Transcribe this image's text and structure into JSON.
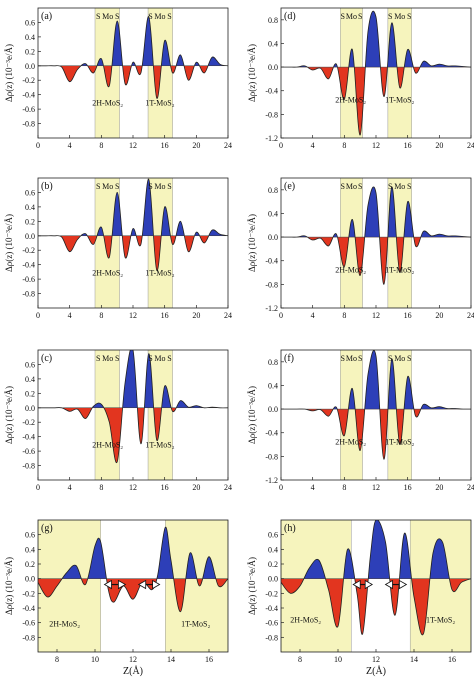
{
  "chart_data": [
    {
      "label": "(a)",
      "type": "area",
      "xlabel": "",
      "ylabel": "Δρ(z) (10⁻³e/Å)",
      "xlim": [
        0,
        24
      ],
      "ylim": [
        -1.0,
        0.8
      ],
      "xticks": [
        "0",
        "4",
        "8",
        "12",
        "16",
        "20",
        "24"
      ],
      "yticks": [
        "-0.8",
        "-0.6",
        "-0.4",
        "-0.2",
        "0.0",
        "0.2",
        "0.4",
        "0.6"
      ],
      "bands": [
        [
          7.2,
          10.3
        ],
        [
          13.9,
          17.0
        ]
      ],
      "atom_labels": [
        {
          "text": "S",
          "x": 7.6
        },
        {
          "text": "Mo",
          "x": 8.8
        },
        {
          "text": "S",
          "x": 10.0
        },
        {
          "text": "S",
          "x": 14.2
        },
        {
          "text": "Mo",
          "x": 15.4
        },
        {
          "text": "S",
          "x": 16.6
        }
      ],
      "region_labels": [
        {
          "text": "2H-MoS₂",
          "x": 8.8,
          "y": -0.55
        },
        {
          "text": "1T-MoS₂",
          "x": 15.4,
          "y": -0.55
        }
      ],
      "x": [
        0,
        1,
        2,
        3,
        4,
        5,
        6,
        7,
        8,
        9,
        10,
        11,
        12,
        13,
        14,
        15,
        16,
        17,
        18,
        19,
        20,
        21,
        22,
        23,
        24
      ],
      "values": [
        0,
        0,
        0,
        -0.02,
        -0.22,
        -0.05,
        0.03,
        -0.1,
        0.1,
        -0.28,
        0.62,
        -0.25,
        0.05,
        -0.1,
        0.68,
        -0.45,
        0.35,
        -0.1,
        0.15,
        -0.2,
        0.05,
        -0.1,
        0.12,
        0.02,
        0
      ]
    },
    {
      "label": "(d)",
      "type": "area",
      "xlabel": "",
      "ylabel": "Δρ(z) (10⁻³e/Å)",
      "xlim": [
        0,
        24
      ],
      "ylim": [
        -1.2,
        1.0
      ],
      "xticks": [
        "0",
        "4",
        "8",
        "12",
        "16",
        "20",
        "24"
      ],
      "yticks": [
        "-1.2",
        "-0.8",
        "-0.4",
        "0.0",
        "0.4",
        "0.8"
      ],
      "bands": [
        [
          7.5,
          10.3
        ],
        [
          13.5,
          16.5
        ]
      ],
      "atom_labels": [
        {
          "text": "S",
          "x": 7.8
        },
        {
          "text": "Mo",
          "x": 8.9
        },
        {
          "text": "S",
          "x": 10.0
        },
        {
          "text": "S",
          "x": 13.8
        },
        {
          "text": "Mo",
          "x": 15.0
        },
        {
          "text": "S",
          "x": 16.2
        }
      ],
      "region_labels": [
        {
          "text": "2H-MoS₂",
          "x": 8.8,
          "y": -0.6
        },
        {
          "text": "1T-MoS₂",
          "x": 15.0,
          "y": -0.6
        }
      ],
      "x": [
        0,
        1,
        2,
        3,
        4,
        5,
        6,
        7,
        8,
        9,
        10,
        11,
        12,
        13,
        14,
        15,
        16,
        17,
        18,
        19,
        20,
        21,
        22,
        23,
        24
      ],
      "values": [
        0,
        0,
        0,
        0.02,
        -0.05,
        -0.02,
        -0.2,
        0.05,
        -0.55,
        0.3,
        -1.15,
        0.62,
        0.85,
        -0.5,
        0.75,
        -0.35,
        0.3,
        -0.1,
        0.1,
        0.02,
        0.05,
        0.02,
        0.02,
        0.01,
        0
      ]
    },
    {
      "label": "(b)",
      "type": "area",
      "xlabel": "",
      "ylabel": "Δρ(z) (10⁻³e/Å)",
      "xlim": [
        0,
        24
      ],
      "ylim": [
        -1.0,
        0.8
      ],
      "xticks": [
        "0",
        "4",
        "8",
        "12",
        "16",
        "20",
        "24"
      ],
      "yticks": [
        "-0.8",
        "-0.6",
        "-0.4",
        "-0.2",
        "0.0",
        "0.2",
        "0.4",
        "0.6"
      ],
      "bands": [
        [
          7.2,
          10.3
        ],
        [
          13.9,
          17.0
        ]
      ],
      "atom_labels": [
        {
          "text": "S",
          "x": 7.6
        },
        {
          "text": "Mo",
          "x": 8.8
        },
        {
          "text": "S",
          "x": 10.0
        },
        {
          "text": "S",
          "x": 14.2
        },
        {
          "text": "Mo",
          "x": 15.4
        },
        {
          "text": "S",
          "x": 16.6
        }
      ],
      "region_labels": [
        {
          "text": "2H-MoS₂",
          "x": 8.8,
          "y": -0.55
        },
        {
          "text": "1T-MoS₂",
          "x": 15.4,
          "y": -0.55
        }
      ],
      "x": [
        0,
        1,
        2,
        3,
        4,
        5,
        6,
        7,
        8,
        9,
        10,
        11,
        12,
        13,
        14,
        15,
        16,
        17,
        18,
        19,
        20,
        21,
        22,
        23,
        24
      ],
      "values": [
        0,
        0,
        0,
        -0.02,
        -0.22,
        -0.05,
        0.03,
        -0.12,
        0.12,
        -0.3,
        0.6,
        -0.3,
        0.1,
        -0.12,
        0.78,
        -0.48,
        0.4,
        -0.12,
        0.2,
        -0.22,
        0.05,
        -0.1,
        0.08,
        0.02,
        0
      ]
    },
    {
      "label": "(e)",
      "type": "area",
      "xlabel": "",
      "ylabel": "Δρ(z) (10⁻³e/Å)",
      "xlim": [
        0,
        24
      ],
      "ylim": [
        -1.2,
        1.0
      ],
      "xticks": [
        "0",
        "4",
        "8",
        "12",
        "16",
        "20",
        "24"
      ],
      "yticks": [
        "-1.2",
        "-0.8",
        "-0.4",
        "0.0",
        "0.4",
        "0.8"
      ],
      "bands": [
        [
          7.5,
          10.3
        ],
        [
          13.5,
          16.5
        ]
      ],
      "atom_labels": [
        {
          "text": "S",
          "x": 7.8
        },
        {
          "text": "Mo",
          "x": 8.9
        },
        {
          "text": "S",
          "x": 10.0
        },
        {
          "text": "S",
          "x": 13.8
        },
        {
          "text": "Mo",
          "x": 15.0
        },
        {
          "text": "S",
          "x": 16.2
        }
      ],
      "region_labels": [
        {
          "text": "2H-MoS₂",
          "x": 8.8,
          "y": -0.6
        },
        {
          "text": "1T-MoS₂",
          "x": 15.0,
          "y": -0.6
        }
      ],
      "x": [
        0,
        1,
        2,
        3,
        4,
        5,
        6,
        7,
        8,
        9,
        10,
        11,
        12,
        13,
        14,
        15,
        16,
        17,
        18,
        19,
        20,
        21,
        22,
        23,
        24
      ],
      "values": [
        0,
        0,
        0,
        0.02,
        -0.05,
        -0.02,
        -0.15,
        0.05,
        -0.5,
        0.3,
        -0.65,
        0.55,
        0.75,
        -0.8,
        0.85,
        -0.6,
        0.6,
        -0.15,
        0.1,
        0.02,
        0.05,
        0.02,
        0.02,
        0.01,
        0
      ]
    },
    {
      "label": "(c)",
      "type": "area",
      "xlabel": "",
      "ylabel": "Δρ(z) (10⁻³e/Å)",
      "xlim": [
        0,
        24
      ],
      "ylim": [
        -1.0,
        0.8
      ],
      "xticks": [
        "0",
        "4",
        "8",
        "12",
        "16",
        "20",
        "24"
      ],
      "yticks": [
        "-0.8",
        "-0.6",
        "-0.4",
        "-0.2",
        "0.0",
        "0.2",
        "0.4",
        "0.6"
      ],
      "bands": [
        [
          7.2,
          10.3
        ],
        [
          13.9,
          17.0
        ]
      ],
      "atom_labels": [
        {
          "text": "S",
          "x": 7.6
        },
        {
          "text": "Mo",
          "x": 8.8
        },
        {
          "text": "S",
          "x": 10.0
        },
        {
          "text": "S",
          "x": 14.2
        },
        {
          "text": "Mo",
          "x": 15.4
        },
        {
          "text": "S",
          "x": 16.6
        }
      ],
      "region_labels": [
        {
          "text": "2H-MoS₂",
          "x": 8.8,
          "y": -0.55
        },
        {
          "text": "1T-MoS₂",
          "x": 15.4,
          "y": -0.55
        }
      ],
      "x": [
        0,
        1,
        2,
        3,
        4,
        5,
        6,
        7,
        8,
        9,
        10,
        11,
        12,
        13,
        14,
        15,
        16,
        17,
        18,
        19,
        20,
        21,
        22,
        23,
        24
      ],
      "values": [
        0,
        0,
        0,
        0,
        -0.05,
        -0.02,
        -0.15,
        0.02,
        0.05,
        -0.2,
        -0.75,
        0.35,
        0.8,
        -0.5,
        0.75,
        -0.45,
        0.3,
        -0.05,
        0.1,
        0.01,
        0.03,
        0,
        0.01,
        0,
        0
      ]
    },
    {
      "label": "(f)",
      "type": "area",
      "xlabel": "",
      "ylabel": "Δρ(z) (10⁻³e/Å)",
      "xlim": [
        0,
        24
      ],
      "ylim": [
        -1.2,
        1.0
      ],
      "xticks": [
        "0",
        "4",
        "8",
        "12",
        "16",
        "20",
        "24"
      ],
      "yticks": [
        "-1.2",
        "-0.8",
        "-0.4",
        "0.0",
        "0.4",
        "0.8"
      ],
      "bands": [
        [
          7.5,
          10.3
        ],
        [
          13.5,
          16.5
        ]
      ],
      "atom_labels": [
        {
          "text": "S",
          "x": 7.8
        },
        {
          "text": "Mo",
          "x": 8.9
        },
        {
          "text": "S",
          "x": 10.0
        },
        {
          "text": "S",
          "x": 13.8
        },
        {
          "text": "Mo",
          "x": 15.0
        },
        {
          "text": "S",
          "x": 16.2
        }
      ],
      "region_labels": [
        {
          "text": "2H-MoS₂",
          "x": 8.8,
          "y": -0.6
        },
        {
          "text": "1T-MoS₂",
          "x": 15.0,
          "y": -0.6
        }
      ],
      "x": [
        0,
        1,
        2,
        3,
        4,
        5,
        6,
        7,
        8,
        9,
        10,
        11,
        12,
        13,
        14,
        15,
        16,
        17,
        18,
        19,
        20,
        21,
        22,
        23,
        24
      ],
      "values": [
        0,
        0,
        0,
        0,
        -0.03,
        -0.01,
        -0.12,
        0.03,
        -0.45,
        0.35,
        -0.7,
        0.6,
        0.9,
        -0.85,
        0.85,
        -0.6,
        0.55,
        -0.12,
        0.08,
        0.02,
        0.04,
        0.01,
        0.01,
        0,
        0
      ]
    },
    {
      "label": "(g)",
      "type": "area",
      "xlabel": "Z(Å)",
      "ylabel": "Δρ(z) (10⁻³e/Å)",
      "xlim": [
        7,
        17
      ],
      "ylim": [
        -1.0,
        0.8
      ],
      "xticks": [
        "8",
        "10",
        "12",
        "14",
        "16"
      ],
      "yticks": [
        "-0.8",
        "-0.6",
        "-0.4",
        "-0.2",
        "0.0",
        "0.2",
        "0.4",
        "0.6"
      ],
      "bands": [
        [
          7.0,
          10.3
        ],
        [
          13.7,
          17.0
        ]
      ],
      "arrows": [
        [
          10.5,
          11.6
        ],
        [
          12.3,
          13.4
        ]
      ],
      "region_labels": [
        {
          "text": "2H-MoS₂",
          "x": 8.4,
          "y": -0.65
        },
        {
          "text": "1T-MoS₂",
          "x": 15.3,
          "y": -0.65
        }
      ],
      "x": [
        7,
        7.5,
        8,
        8.5,
        9,
        9.5,
        10,
        10.3,
        10.7,
        11,
        11.5,
        12,
        12.5,
        13,
        13.3,
        13.7,
        14,
        14.5,
        15,
        15.5,
        16,
        16.5,
        17
      ],
      "values": [
        -0.05,
        -0.25,
        -0.1,
        0.08,
        0.18,
        -0.08,
        0.45,
        0.5,
        -0.15,
        -0.32,
        -0.1,
        -0.28,
        -0.05,
        -0.15,
        0.05,
        0.7,
        0.25,
        -0.45,
        0.35,
        -0.1,
        0.3,
        -0.1,
        0
      ]
    },
    {
      "label": "(h)",
      "type": "area",
      "xlabel": "Z(Å)",
      "ylabel": "Δρ(z) (10⁻³e/Å)",
      "xlim": [
        7,
        17
      ],
      "ylim": [
        -1.0,
        0.8
      ],
      "xticks": [
        "8",
        "10",
        "12",
        "14",
        "16"
      ],
      "yticks": [
        "-0.8",
        "-0.6",
        "-0.4",
        "-0.2",
        "0.0",
        "0.2",
        "0.4",
        "0.6"
      ],
      "bands": [
        [
          7.0,
          10.7
        ],
        [
          13.8,
          17.0
        ]
      ],
      "arrows": [
        [
          10.8,
          11.8
        ],
        [
          12.5,
          13.6
        ]
      ],
      "region_labels": [
        {
          "text": "2H-MoS₂",
          "x": 8.3,
          "y": -0.6
        },
        {
          "text": "1T-MoS₂",
          "x": 15.4,
          "y": -0.6
        }
      ],
      "x": [
        7,
        7.5,
        8,
        8.5,
        9,
        9.5,
        10,
        10.5,
        11,
        11.3,
        11.7,
        12,
        12.5,
        13,
        13.5,
        14,
        14.5,
        15,
        15.5,
        16,
        16.5,
        17
      ],
      "values": [
        -0.05,
        -0.2,
        -0.1,
        0.15,
        0.25,
        -0.15,
        -0.65,
        0.4,
        -0.2,
        -0.75,
        0.3,
        0.8,
        0.5,
        -0.5,
        0.62,
        -0.25,
        -0.75,
        0.35,
        0.5,
        -0.15,
        -0.05,
        0
      ]
    }
  ]
}
